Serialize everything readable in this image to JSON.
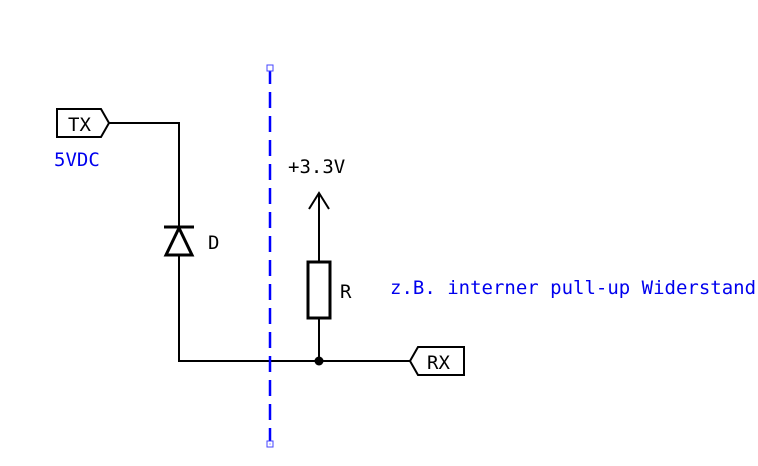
{
  "diagram": {
    "tx_label": "TX",
    "rx_label": "RX",
    "tx_voltage_note": "5VDC",
    "supply_label": "+3.3V",
    "diode_label": "D",
    "resistor_label": "R",
    "resistor_note": "z.B. interner pull-up Widerstand",
    "colors": {
      "wire": "#000000",
      "annotation": "#0000ee",
      "separator": "#0000ff"
    }
  }
}
